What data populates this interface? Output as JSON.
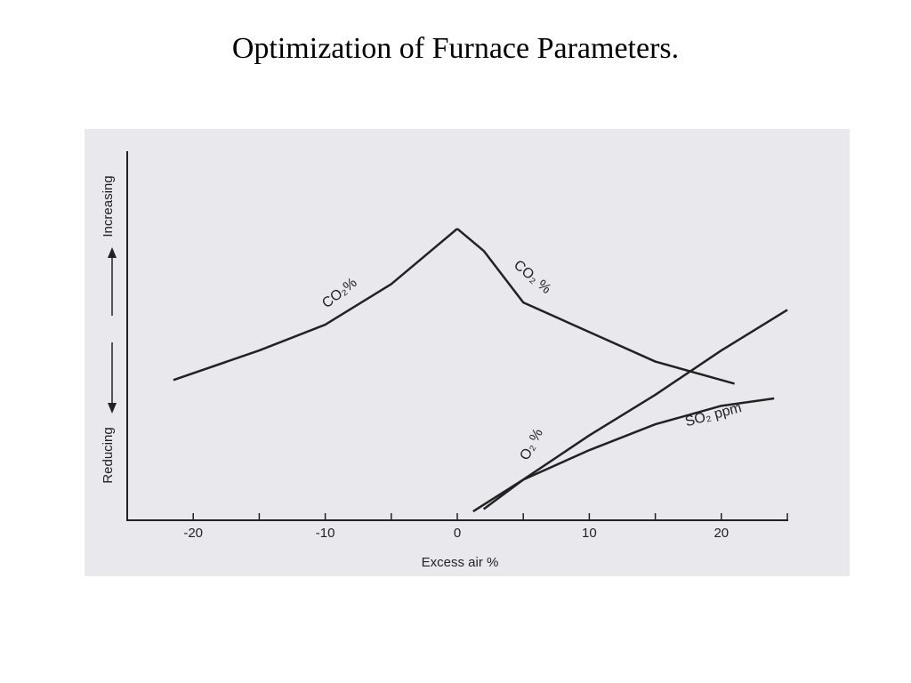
{
  "chart_data": {
    "type": "line",
    "title": "Optimization of Furnace Parameters.",
    "x_label": "Excess air %",
    "y_label_top": "Increasing",
    "y_label_bottom": "Reducing",
    "xlim": [
      -25,
      25
    ],
    "xticks": [
      -20,
      -10,
      0,
      10,
      20
    ],
    "xminor_ticks": [
      -15,
      -5,
      5,
      15,
      25
    ],
    "ylim": [
      0,
      10
    ],
    "color": "#222222",
    "series": [
      {
        "name": "CO₂%",
        "x": [
          -21.5,
          -15,
          -10,
          -5,
          -2,
          0
        ],
        "values": [
          3.8,
          4.6,
          5.3,
          6.4,
          7.3,
          7.9
        ]
      },
      {
        "name": "CO₂ %",
        "x": [
          0,
          2,
          5,
          10,
          15,
          20,
          21
        ],
        "values": [
          7.9,
          7.3,
          5.9,
          5.1,
          4.3,
          3.8,
          3.7
        ]
      },
      {
        "name": "O₂ %",
        "x": [
          1.2,
          5,
          10,
          15,
          20,
          25
        ],
        "values": [
          0.24,
          1.1,
          2.3,
          3.4,
          4.6,
          5.7
        ]
      },
      {
        "name": "SO₂ ppm",
        "x": [
          2,
          5,
          10,
          15,
          20,
          24
        ],
        "values": [
          0.3,
          1.1,
          1.9,
          2.6,
          3.1,
          3.3
        ]
      }
    ]
  }
}
